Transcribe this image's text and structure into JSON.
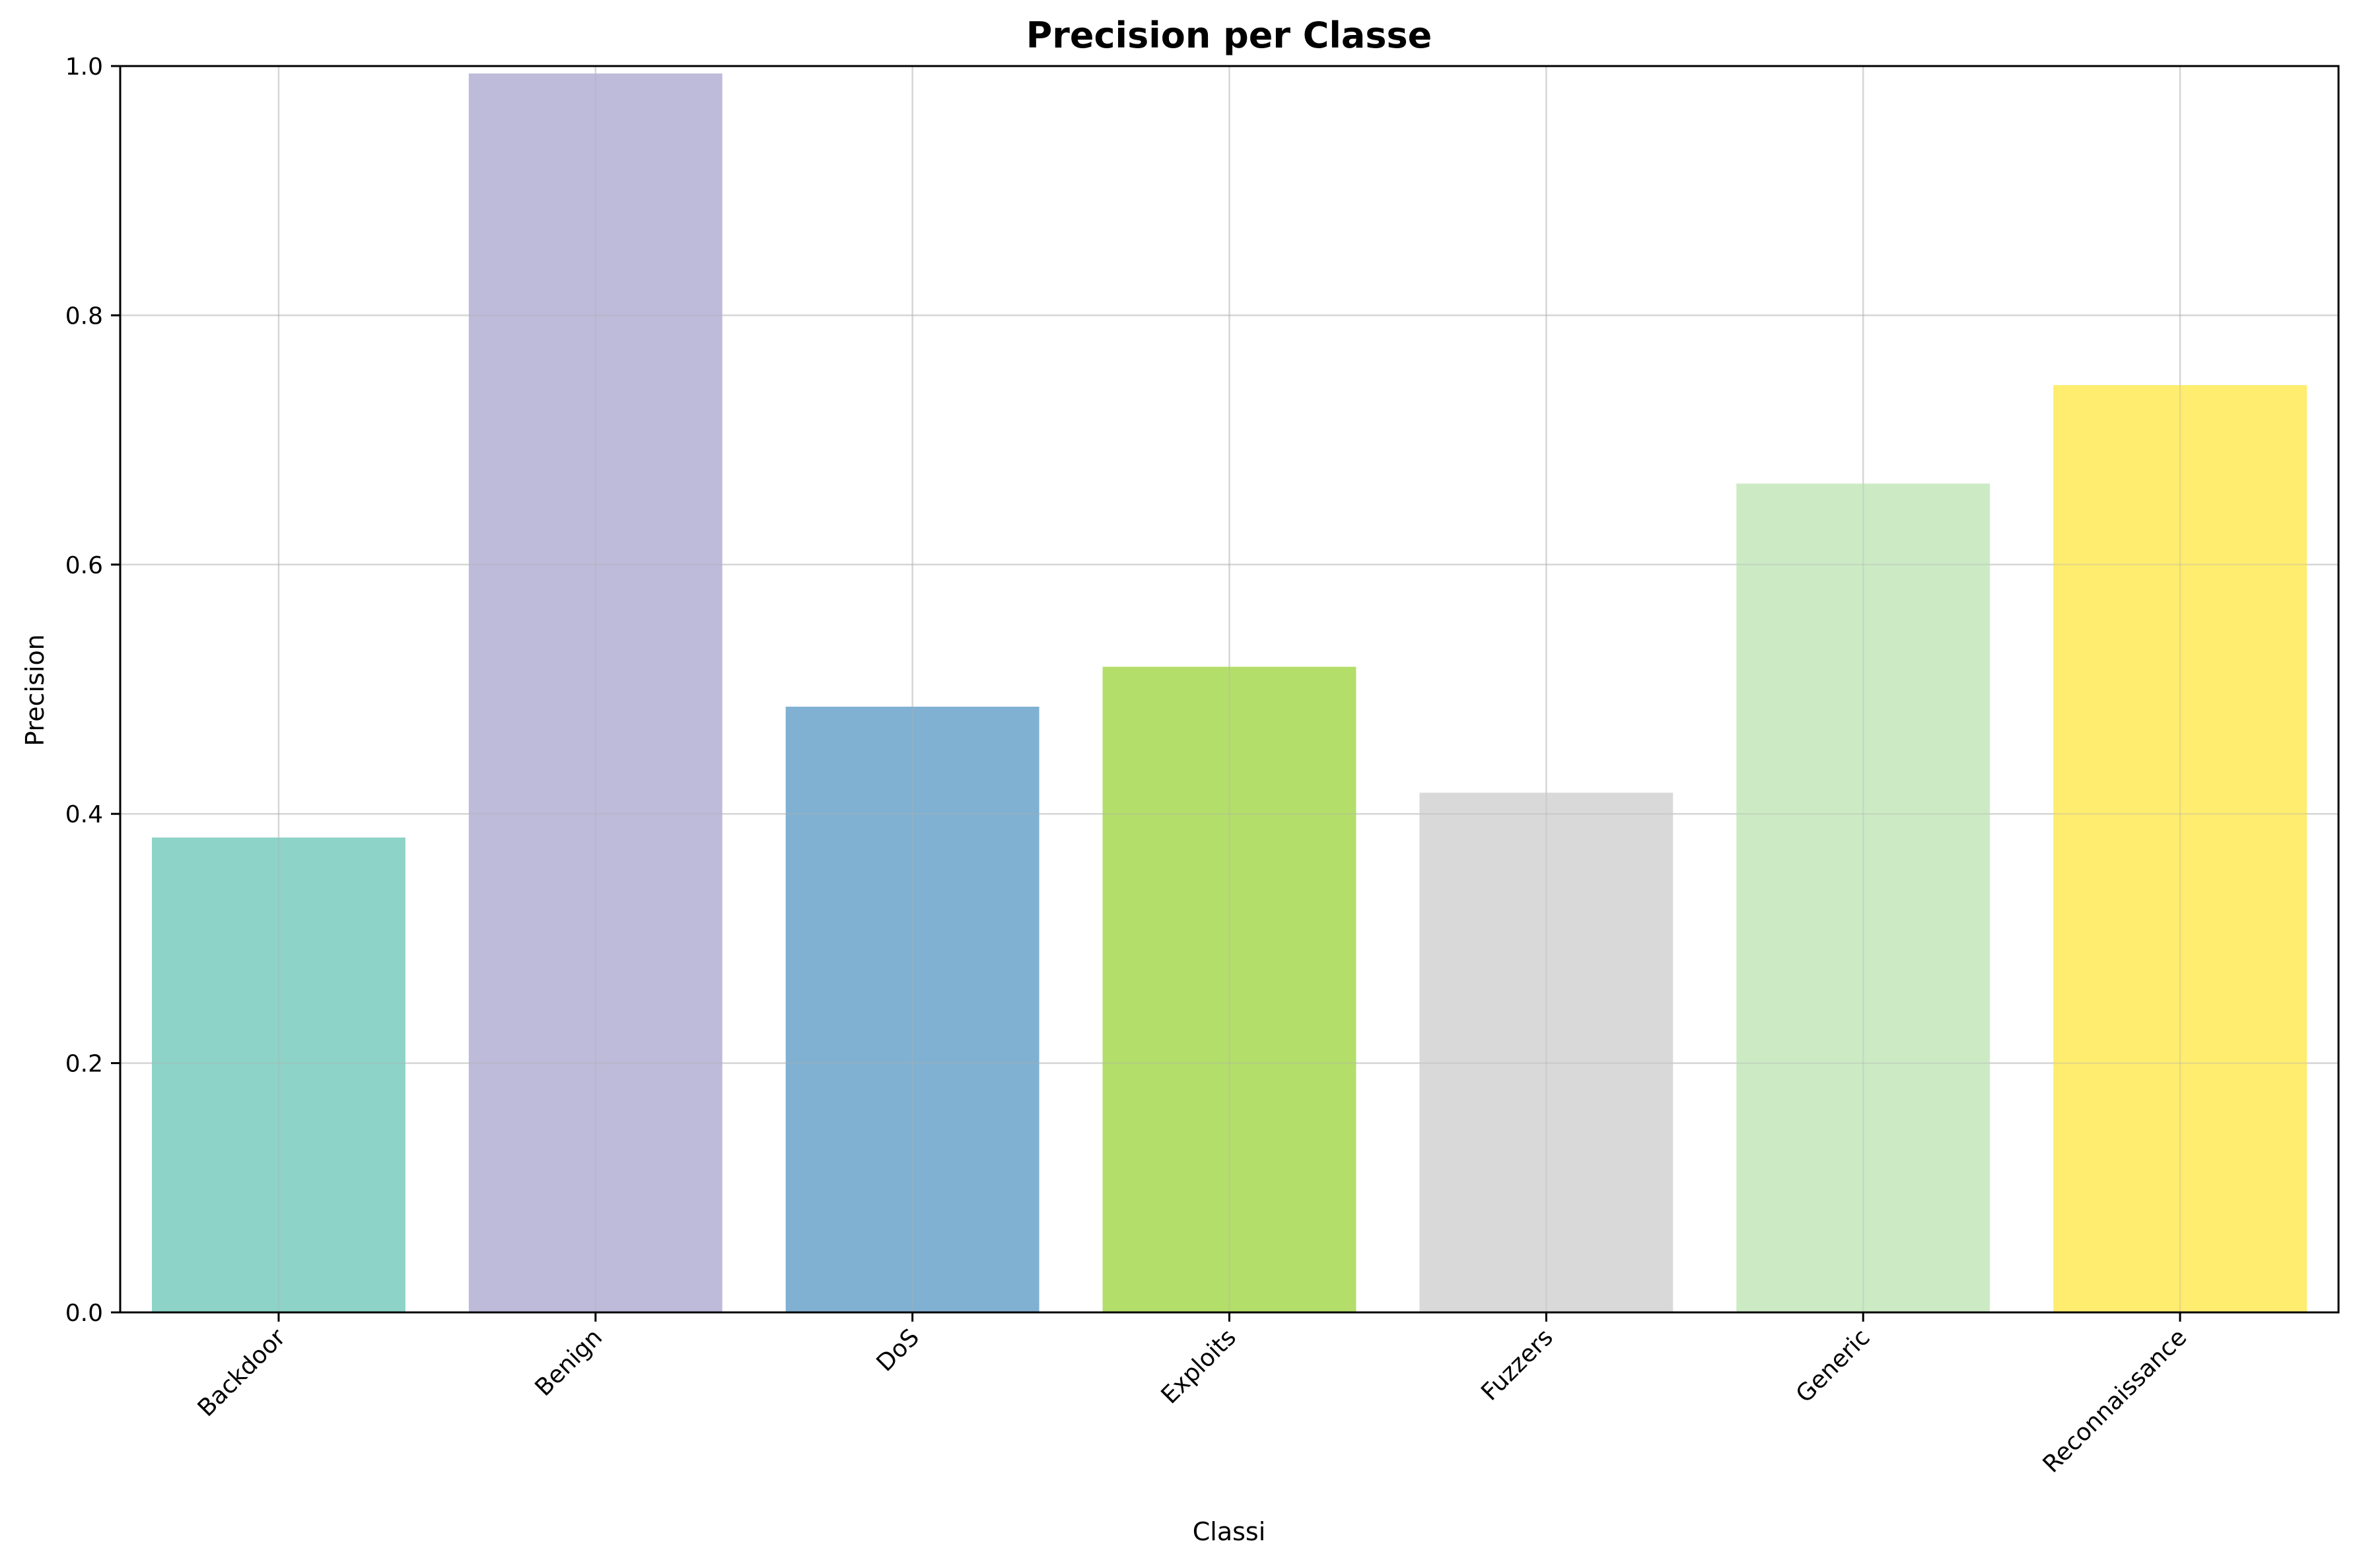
{
  "chart_data": {
    "type": "bar",
    "title": "Precision per Classe",
    "xlabel": "Classi",
    "ylabel": "Precision",
    "categories": [
      "Backdoor",
      "Benign",
      "DoS",
      "Exploits",
      "Fuzzers",
      "Generic",
      "Reconnaissance"
    ],
    "values": [
      0.381,
      0.994,
      0.486,
      0.518,
      0.417,
      0.665,
      0.744
    ],
    "colors": [
      "#8dd3c7",
      "#bebada",
      "#80b1d3",
      "#b3de69",
      "#d9d9d9",
      "#ccebc5",
      "#ffed6f"
    ],
    "ylim": [
      0,
      1.0
    ],
    "yticks": [
      "0.0",
      "0.2",
      "0.4",
      "0.6",
      "0.8",
      "1.0"
    ],
    "grid": true,
    "legend": "none"
  }
}
